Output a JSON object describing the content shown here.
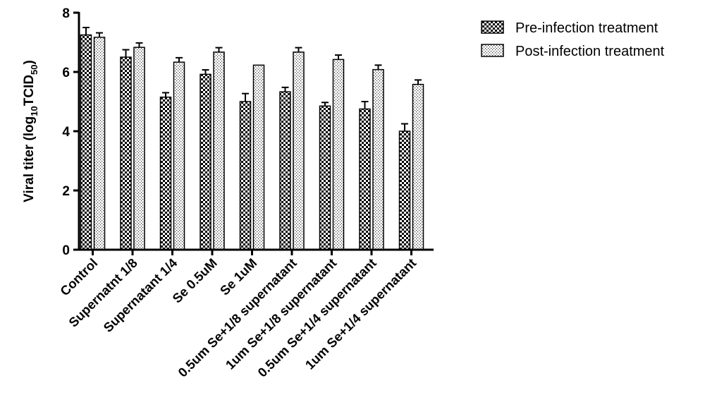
{
  "chart_data": {
    "type": "bar",
    "title": "",
    "xlabel": "",
    "ylabel": {
      "prefix": "Viral titer (log",
      "sub1": "10",
      "mid": "TCID",
      "sub2": "50",
      "suffix": ")"
    },
    "ylim": [
      0,
      8
    ],
    "yticks": [
      "0",
      "2",
      "4",
      "6",
      "8"
    ],
    "legend_position": "top-right",
    "categories": [
      "Control",
      "Supernatnt 1/8",
      "Supernatant 1/4",
      "Se 0.5uM",
      "Se 1uM",
      "0.5um Se+1/8 supernatant",
      "1um Se+1/8 supernatant",
      "0.5um Se+1/4 supernatant",
      "1um Se+1/4 supernatant"
    ],
    "series": [
      {
        "name": "Pre-infection treatment",
        "pattern": "checkerboard",
        "values": [
          7.25,
          6.5,
          5.15,
          5.92,
          5.0,
          5.33,
          4.85,
          4.75,
          4.0
        ],
        "errors": [
          0.25,
          0.25,
          0.15,
          0.15,
          0.27,
          0.15,
          0.12,
          0.25,
          0.25
        ]
      },
      {
        "name": "Post-infection treatment",
        "pattern": "dots",
        "values": [
          7.17,
          6.83,
          6.33,
          6.67,
          6.23,
          6.67,
          6.42,
          6.08,
          5.58
        ],
        "errors": [
          0.15,
          0.15,
          0.15,
          0.15,
          0.0,
          0.15,
          0.15,
          0.15,
          0.15
        ]
      }
    ]
  }
}
